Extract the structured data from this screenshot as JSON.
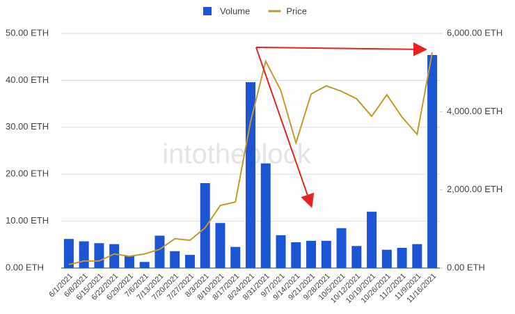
{
  "chart_data": {
    "type": "bar-line",
    "watermark": "intotheblock",
    "legend": "top",
    "grid": true,
    "categories": [
      "6/1/2021",
      "6/8/2021",
      "6/15/2021",
      "6/22/2021",
      "6/29/2021",
      "7/6/2021",
      "7/13/2021",
      "7/20/2021",
      "7/27/2021",
      "8/3/2021",
      "8/10/2021",
      "8/17/2021",
      "8/24/2021",
      "8/31/2021",
      "9/7/2021",
      "9/14/2021",
      "9/21/2021",
      "9/28/2021",
      "10/5/2021",
      "10/12/2021",
      "10/19/2021",
      "10/26/2021",
      "11/2/2021",
      "11/9/2021",
      "11/16/2021"
    ],
    "series": [
      {
        "name": "Volume",
        "type": "bar",
        "color": "#1c55d3",
        "axis": "y",
        "values": [
          6.2,
          5.7,
          5.3,
          5.1,
          2.5,
          1.3,
          6.9,
          3.6,
          2.8,
          18.1,
          9.6,
          4.5,
          39.6,
          22.3,
          7.0,
          5.5,
          5.8,
          5.8,
          8.5,
          4.7,
          12.0,
          3.9,
          4.3,
          5.1,
          45.4
        ]
      },
      {
        "name": "Price",
        "type": "line",
        "color": "#c29a2c",
        "axis": "y2",
        "values": [
          90,
          180,
          180,
          360,
          300,
          360,
          480,
          750,
          710,
          1030,
          1600,
          1690,
          3740,
          5290,
          4540,
          3200,
          4450,
          4660,
          4520,
          4330,
          3880,
          4430,
          3860,
          3420,
          5520
        ]
      }
    ],
    "ylim": [
      0,
      50
    ],
    "yticks": [
      {
        "value": 0,
        "label": "0.00 ETH"
      },
      {
        "value": 10,
        "label": "10.00 ETH"
      },
      {
        "value": 20,
        "label": "20.00 ETH"
      },
      {
        "value": 30,
        "label": "30.00 ETH"
      },
      {
        "value": 40,
        "label": "40.00 ETH"
      },
      {
        "value": 50,
        "label": "50.00 ETH"
      }
    ],
    "y2lim": [
      0,
      6000
    ],
    "y2ticks": [
      {
        "value": 0,
        "label": "0.00 ETH"
      },
      {
        "value": 2000,
        "label": "2,000.00 ETH"
      },
      {
        "value": 4000,
        "label": "4,000.00 ETH"
      },
      {
        "value": 6000,
        "label": "6,000.00 ETH"
      }
    ]
  }
}
